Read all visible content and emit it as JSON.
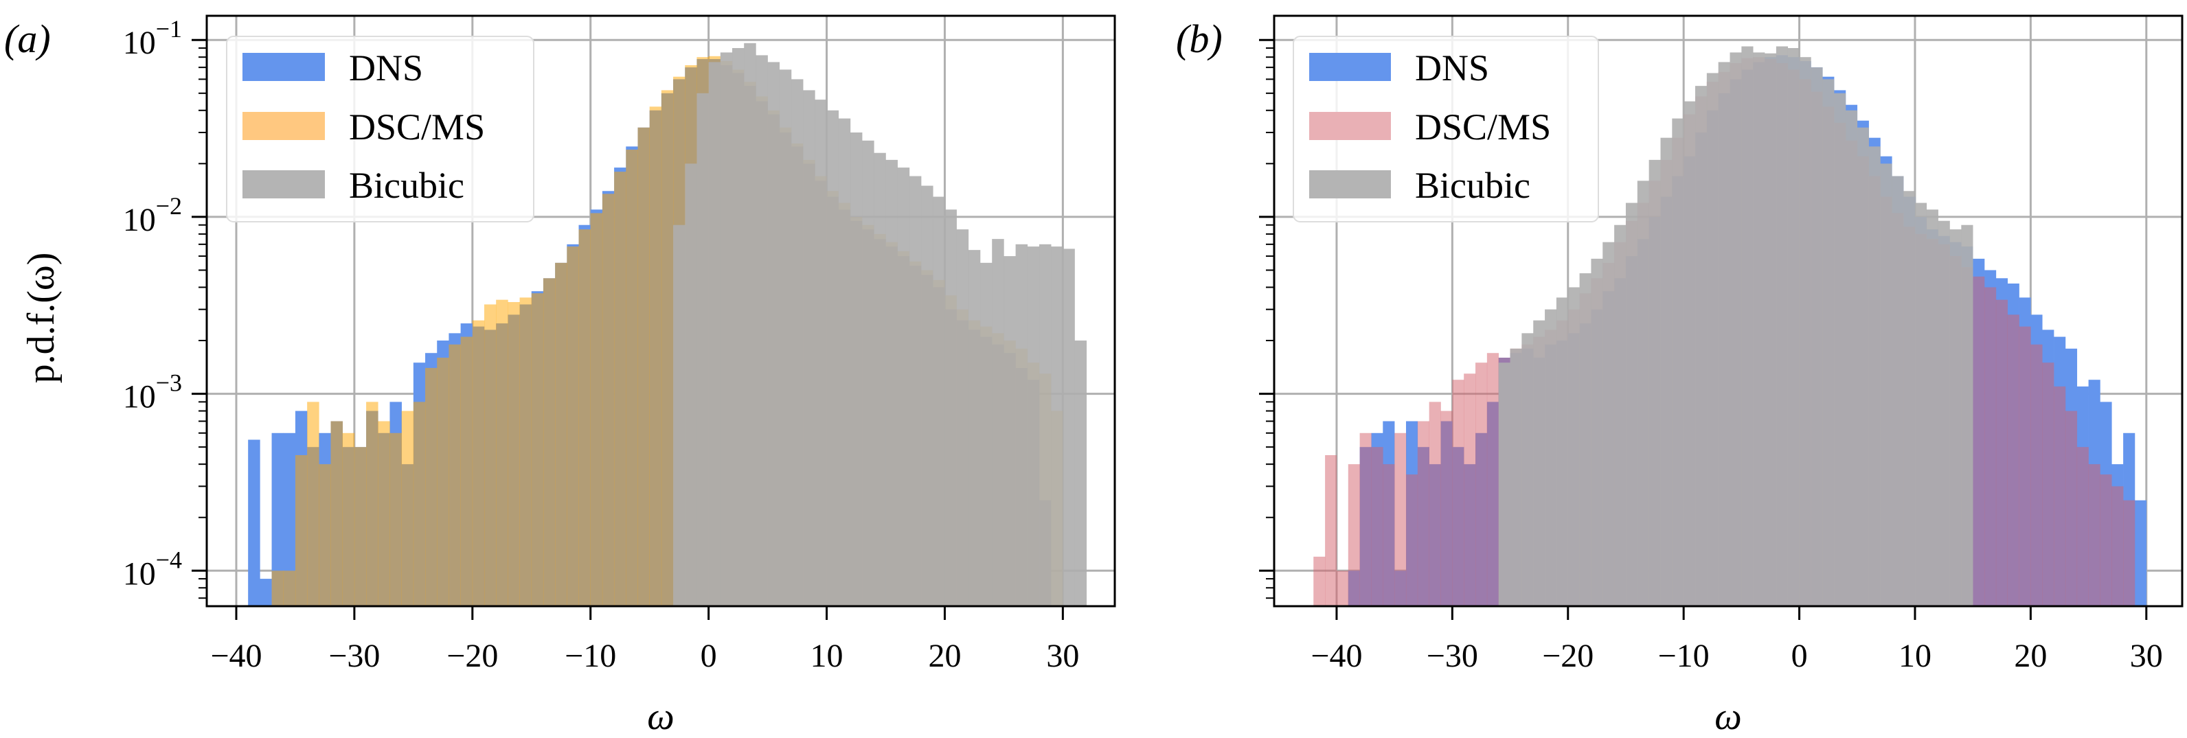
{
  "figure": {
    "ylabel": "p.d.f.(ω)",
    "panels": [
      {
        "id": "a",
        "label": "(a)",
        "xlabel": "ω"
      },
      {
        "id": "b",
        "label": "(b)",
        "xlabel": "ω"
      }
    ]
  },
  "colors": {
    "dns": "#6495ED",
    "dsc_ms_a": "#FFA500",
    "dsc_ms_b": "#D4616B",
    "bicubic": "#AEAEAE",
    "grid": "#b0b0b0",
    "axes": "#000000"
  },
  "chart_data": [
    {
      "type": "bar",
      "subtype": "histogram",
      "panel": "(a)",
      "title": "",
      "xlabel": "ω",
      "ylabel": "p.d.f.(ω)",
      "yscale": "log",
      "xlim": [
        -42.5,
        34.4
      ],
      "ylim": [
        6.3e-05,
        0.137
      ],
      "xticks": [
        -40,
        -30,
        -20,
        -10,
        0,
        10,
        20,
        30
      ],
      "xtick_labels": [
        "−40",
        "−30",
        "−20",
        "−10",
        "0",
        "10",
        "20",
        "30"
      ],
      "yticks": [
        0.1,
        0.01,
        0.001,
        0.0001
      ],
      "ytick_labels": [
        "10−1",
        "10−2",
        "10−3",
        "10−4"
      ],
      "grid": true,
      "legend_position": "upper left",
      "legend": [
        "DNS",
        "DSC/MS",
        "Bicubic"
      ],
      "bin_width": 1,
      "series": [
        {
          "name": "DNS",
          "x_start": -39,
          "values": [
            0.00055,
            9e-05,
            0.0006,
            0.0006,
            0.0008,
            0.0005,
            0.0006,
            0.0007,
            0.0005,
            0.0005,
            0.0008,
            0.0006,
            0.0009,
            0.0004,
            0.0015,
            0.0017,
            0.002,
            0.0022,
            0.0025,
            0.0024,
            0.0023,
            0.0025,
            0.0028,
            0.0032,
            0.0038,
            0.0045,
            0.0055,
            0.007,
            0.009,
            0.011,
            0.014,
            0.019,
            0.025,
            0.032,
            0.04,
            0.05,
            0.06,
            0.07,
            0.078,
            0.078,
            0.072,
            0.065,
            0.055,
            0.045,
            0.038,
            0.03,
            0.025,
            0.02,
            0.016,
            0.013,
            0.011,
            0.0095,
            0.0085,
            0.0075,
            0.0068,
            0.006,
            0.0053,
            0.0047,
            0.004,
            0.003,
            0.0026,
            0.0023,
            0.0021,
            0.0019,
            0.0017,
            0.0014,
            0.0012,
            0.00025
          ]
        },
        {
          "name": "DSC/MS",
          "x_start": -37,
          "values": [
            0.0001,
            0.0001,
            0.00045,
            0.0009,
            0.0004,
            0.0007,
            0.0006,
            0.0005,
            0.0009,
            0.0007,
            0.0006,
            0.0008,
            0.0009,
            0.0014,
            0.0016,
            0.0019,
            0.0021,
            0.0026,
            0.0032,
            0.0034,
            0.0033,
            0.0035,
            0.0037,
            0.0045,
            0.0055,
            0.0068,
            0.0085,
            0.0105,
            0.0135,
            0.018,
            0.024,
            0.032,
            0.042,
            0.052,
            0.062,
            0.072,
            0.08,
            0.081,
            0.076,
            0.068,
            0.058,
            0.048,
            0.04,
            0.032,
            0.026,
            0.021,
            0.017,
            0.014,
            0.012,
            0.01,
            0.009,
            0.008,
            0.0072,
            0.0064,
            0.0056,
            0.005,
            0.0044,
            0.0036,
            0.003,
            0.0026,
            0.0024,
            0.0022,
            0.002,
            0.0018,
            0.0015,
            0.0013,
            0.0008
          ]
        },
        {
          "name": "Bicubic",
          "x_start": -3,
          "values": [
            0.009,
            0.02,
            0.05,
            0.075,
            0.085,
            0.09,
            0.096,
            0.082,
            0.075,
            0.068,
            0.06,
            0.052,
            0.046,
            0.04,
            0.036,
            0.03,
            0.027,
            0.023,
            0.021,
            0.019,
            0.017,
            0.015,
            0.013,
            0.011,
            0.0085,
            0.0065,
            0.0055,
            0.0075,
            0.006,
            0.007,
            0.0068,
            0.007,
            0.0068,
            0.0066,
            0.002
          ]
        }
      ]
    },
    {
      "type": "bar",
      "subtype": "histogram",
      "panel": "(b)",
      "title": "",
      "xlabel": "ω",
      "ylabel": "",
      "yscale": "log",
      "xlim": [
        -45.4,
        33.1
      ],
      "ylim": [
        6.3e-05,
        0.137
      ],
      "xticks": [
        -40,
        -30,
        -20,
        -10,
        0,
        10,
        20,
        30
      ],
      "xtick_labels": [
        "−40",
        "−30",
        "−20",
        "−10",
        "0",
        "10",
        "20",
        "30"
      ],
      "yticks": [
        0.1,
        0.01,
        0.001,
        0.0001
      ],
      "ytick_labels": [],
      "grid": true,
      "legend_position": "upper left",
      "legend": [
        "DNS",
        "DSC/MS",
        "Bicubic"
      ],
      "bin_width": 1,
      "series": [
        {
          "name": "DNS",
          "x_start": -39,
          "values": [
            0.0001,
            0.0005,
            0.0006,
            0.0007,
            0.0001,
            0.0007,
            0.0005,
            0.0004,
            0.0007,
            0.0005,
            0.0004,
            0.0006,
            0.0009,
            0.0016,
            0.0017,
            0.0018,
            0.0016,
            0.0019,
            0.002,
            0.0022,
            0.0025,
            0.003,
            0.0038,
            0.0045,
            0.006,
            0.0075,
            0.01,
            0.013,
            0.017,
            0.022,
            0.03,
            0.04,
            0.05,
            0.06,
            0.068,
            0.075,
            0.08,
            0.082,
            0.08,
            0.076,
            0.07,
            0.062,
            0.052,
            0.043,
            0.035,
            0.028,
            0.022,
            0.017,
            0.013,
            0.01,
            0.0085,
            0.0078,
            0.0072,
            0.0068,
            0.0058,
            0.005,
            0.0045,
            0.0042,
            0.0035,
            0.0028,
            0.0023,
            0.0021,
            0.0018,
            0.0011,
            0.0012,
            0.0009,
            0.0004,
            0.0006,
            0.00025
          ]
        },
        {
          "name": "DSC/MS",
          "x_start": -42,
          "values": [
            0.00012,
            0.00045,
            0.0001,
            0.0004,
            0.0006,
            0.0005,
            0.0004,
            0.0006,
            0.00035,
            0.0007,
            0.0009,
            0.0008,
            0.0012,
            0.0013,
            0.0015,
            0.0017,
            0.0016,
            0.0018,
            0.0019,
            0.0021,
            0.0023,
            0.0026,
            0.003,
            0.0037,
            0.0045,
            0.0055,
            0.0072,
            0.0095,
            0.012,
            0.016,
            0.021,
            0.028,
            0.038,
            0.048,
            0.058,
            0.066,
            0.074,
            0.079,
            0.08,
            0.078,
            0.074,
            0.068,
            0.06,
            0.051,
            0.042,
            0.034,
            0.027,
            0.022,
            0.017,
            0.013,
            0.0105,
            0.0088,
            0.008,
            0.0075,
            0.007,
            0.006,
            0.0052,
            0.0046,
            0.004,
            0.0034,
            0.0028,
            0.0024,
            0.0019,
            0.0015,
            0.0011,
            0.0008,
            0.0005,
            0.0004,
            0.00035,
            0.0003,
            0.00025
          ]
        },
        {
          "name": "Bicubic",
          "x_start": -26,
          "values": [
            0.0015,
            0.0018,
            0.0022,
            0.0026,
            0.003,
            0.0035,
            0.004,
            0.0048,
            0.0058,
            0.0072,
            0.009,
            0.012,
            0.016,
            0.021,
            0.028,
            0.036,
            0.045,
            0.055,
            0.065,
            0.075,
            0.085,
            0.092,
            0.085,
            0.084,
            0.092,
            0.09,
            0.08,
            0.07,
            0.06,
            0.05,
            0.04,
            0.032,
            0.025,
            0.02,
            0.017,
            0.014,
            0.012,
            0.011,
            0.0095,
            0.0085,
            0.009
          ]
        }
      ]
    }
  ]
}
